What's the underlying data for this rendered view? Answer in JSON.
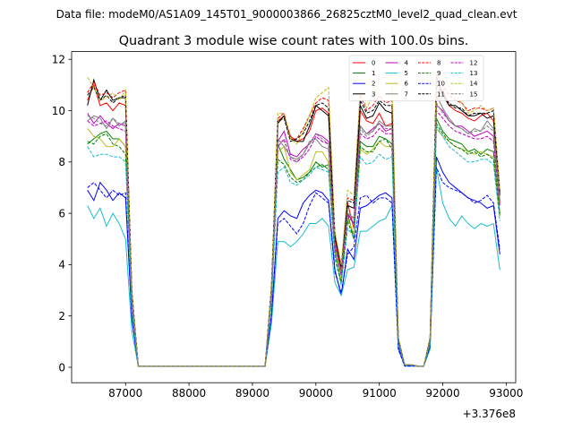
{
  "figure": {
    "suptitle": "Data file: modeM0/AS1A09_145T01_9000003866_26825cztM0_level2_quad_clean.evt"
  },
  "chart_data": {
    "type": "line",
    "title": "Quadrant 3 module wise count rates with 100.0s bins.",
    "xlabel": "",
    "ylabel": "",
    "x_offset_label": "+3.376e8",
    "xlim": [
      86150,
      93150
    ],
    "ylim": [
      -0.6,
      12.3
    ],
    "x_ticks": [
      87000,
      88000,
      89000,
      90000,
      91000,
      92000,
      93000
    ],
    "y_ticks": [
      0,
      2,
      4,
      6,
      8,
      10,
      12
    ],
    "grid": false,
    "legend_position": "top-right",
    "legend_columns": 4,
    "segments": [
      [
        86400,
        86500,
        86600,
        86700,
        86800,
        86900,
        87000,
        87100,
        87200
      ],
      [
        87200,
        89200
      ],
      [
        89200,
        89300,
        89400,
        89500,
        89600,
        89700,
        89800,
        89900,
        90000,
        90100,
        90200,
        90300,
        90400,
        90500,
        90600,
        90700,
        90800,
        90900,
        91000,
        91100,
        91200,
        91300,
        91400
      ],
      [
        91400,
        91500,
        91600,
        91700
      ],
      [
        91700,
        91800,
        91900,
        92000,
        92100,
        92200,
        92300,
        92400,
        92500,
        92600,
        92700,
        92800,
        92900
      ]
    ],
    "series": [
      {
        "name": "0",
        "color": "#ff0000",
        "dash": "solid",
        "values": [
          [
            10.4,
            11.0,
            10.2,
            10.3,
            10.0,
            10.3,
            10.2,
            2.8,
            0.05
          ],
          [
            0.05,
            0.05
          ],
          [
            0.05,
            3.0,
            9.6,
            9.8,
            9.0,
            8.8,
            8.9,
            9.2,
            10.0,
            10.1,
            9.9,
            5.0,
            3.8,
            6.4,
            5.4,
            10.0,
            9.6,
            9.5,
            9.9,
            9.4,
            9.5,
            1.1,
            0.1
          ],
          [
            0.1,
            0.1,
            0.05,
            0.05
          ],
          [
            0.05,
            1.0,
            10.4,
            10.8,
            10.2,
            10.0,
            9.9,
            9.7,
            9.6,
            9.8,
            9.9,
            9.6,
            6.4
          ]
        ]
      },
      {
        "name": "1",
        "color": "#008000",
        "dash": "solid",
        "values": [
          [
            8.7,
            8.9,
            9.1,
            9.2,
            8.9,
            8.9,
            8.6,
            2.4,
            0.05
          ],
          [
            0.05,
            0.05
          ],
          [
            0.05,
            2.8,
            8.7,
            8.1,
            7.7,
            7.3,
            7.4,
            7.6,
            8.0,
            7.8,
            7.9,
            4.5,
            3.3,
            6.0,
            5.0,
            8.8,
            8.6,
            8.6,
            9.0,
            8.9,
            8.7,
            1.0,
            0.1
          ],
          [
            0.1,
            0.1,
            0.05,
            0.05
          ],
          [
            0.05,
            1.0,
            9.7,
            9.2,
            8.9,
            8.8,
            8.7,
            8.4,
            8.5,
            8.3,
            8.5,
            8.4,
            6.0
          ]
        ]
      },
      {
        "name": "2",
        "color": "#0000ff",
        "dash": "solid",
        "values": [
          [
            6.9,
            6.5,
            7.2,
            6.9,
            6.5,
            6.8,
            6.6,
            1.9,
            0.05
          ],
          [
            0.05,
            0.05
          ],
          [
            0.05,
            2.0,
            5.8,
            6.1,
            5.9,
            5.8,
            6.4,
            6.7,
            6.9,
            6.8,
            6.5,
            3.8,
            2.8,
            4.6,
            4.2,
            6.2,
            6.3,
            6.5,
            6.7,
            6.8,
            6.6,
            0.8,
            0.05
          ],
          [
            0.05,
            0.05,
            0.05,
            0.05
          ],
          [
            0.05,
            0.8,
            8.2,
            7.6,
            7.2,
            7.0,
            6.8,
            6.6,
            6.5,
            6.4,
            6.2,
            6.3,
            4.4
          ]
        ]
      },
      {
        "name": "3",
        "color": "#000000",
        "dash": "solid",
        "values": [
          [
            10.2,
            11.2,
            10.4,
            10.8,
            10.4,
            10.5,
            10.5,
            2.9,
            0.05
          ],
          [
            0.05,
            0.05
          ],
          [
            0.05,
            3.1,
            9.5,
            9.8,
            8.9,
            8.8,
            8.8,
            9.4,
            10.2,
            10.0,
            9.8,
            5.1,
            3.9,
            6.3,
            6.2,
            10.2,
            9.7,
            9.8,
            10.3,
            10.0,
            9.9,
            1.1,
            0.1
          ],
          [
            0.1,
            0.1,
            0.05,
            0.05
          ],
          [
            0.05,
            1.1,
            11.3,
            10.6,
            10.2,
            10.2,
            10.0,
            9.8,
            9.8,
            9.9,
            9.7,
            9.8,
            6.7
          ]
        ]
      },
      {
        "name": "4",
        "color": "#bf00bf",
        "dash": "solid",
        "values": [
          [
            9.9,
            9.5,
            9.8,
            9.5,
            9.3,
            9.5,
            9.4,
            2.6,
            0.05
          ],
          [
            0.05,
            0.05
          ],
          [
            0.05,
            2.9,
            8.8,
            9.2,
            8.3,
            8.2,
            8.5,
            8.7,
            9.1,
            9.0,
            8.8,
            4.8,
            3.6,
            6.0,
            5.6,
            9.4,
            9.1,
            9.3,
            9.5,
            9.2,
            9.3,
            1.0,
            0.1
          ],
          [
            0.1,
            0.1,
            0.05,
            0.05
          ],
          [
            0.05,
            1.0,
            10.2,
            10.0,
            9.6,
            9.4,
            9.4,
            9.2,
            9.0,
            9.1,
            9.2,
            9.0,
            6.5
          ]
        ]
      },
      {
        "name": "5",
        "color": "#17becf",
        "dash": "solid",
        "values": [
          [
            6.3,
            5.8,
            6.2,
            5.5,
            6.0,
            5.6,
            5.0,
            1.4,
            0.05
          ],
          [
            0.05,
            0.05
          ],
          [
            0.05,
            1.7,
            4.9,
            4.9,
            4.7,
            4.9,
            5.2,
            5.6,
            5.6,
            5.8,
            5.5,
            3.3,
            2.8,
            3.8,
            3.9,
            5.3,
            5.3,
            5.5,
            5.7,
            5.8,
            6.3,
            0.7,
            0.05
          ],
          [
            0.05,
            0.05,
            0.05,
            0.05
          ],
          [
            0.05,
            0.7,
            7.8,
            6.4,
            5.8,
            5.5,
            5.9,
            5.6,
            5.4,
            5.6,
            5.5,
            5.6,
            3.8
          ]
        ]
      },
      {
        "name": "6",
        "color": "#bcbd22",
        "dash": "solid",
        "values": [
          [
            9.3,
            9.0,
            8.9,
            8.6,
            8.6,
            8.9,
            8.6,
            2.4,
            0.05
          ],
          [
            0.05,
            0.05
          ],
          [
            0.05,
            2.7,
            8.4,
            8.6,
            7.6,
            7.3,
            7.5,
            7.7,
            8.4,
            8.4,
            8.0,
            4.5,
            3.4,
            5.8,
            5.2,
            8.5,
            8.3,
            8.5,
            8.8,
            8.6,
            8.6,
            1.0,
            0.1
          ],
          [
            0.1,
            0.1,
            0.05,
            0.05
          ],
          [
            0.05,
            1.0,
            9.3,
            9.0,
            8.8,
            8.6,
            8.5,
            8.4,
            8.3,
            8.4,
            8.3,
            8.2,
            5.9
          ]
        ]
      },
      {
        "name": "7",
        "color": "#7f7f7f",
        "dash": "solid",
        "values": [
          [
            9.6,
            9.8,
            9.7,
            9.3,
            9.7,
            9.4,
            9.6,
            2.7,
            0.05
          ],
          [
            0.05,
            0.05
          ],
          [
            0.05,
            2.9,
            8.9,
            8.6,
            8.2,
            8.1,
            8.3,
            8.8,
            8.9,
            8.6,
            8.5,
            4.7,
            3.6,
            6.0,
            5.8,
            9.4,
            9.1,
            9.2,
            9.6,
            9.4,
            9.4,
            1.0,
            0.1
          ],
          [
            0.1,
            0.1,
            0.05,
            0.05
          ],
          [
            0.05,
            1.0,
            10.6,
            10.1,
            9.7,
            9.4,
            9.3,
            9.1,
            9.3,
            9.2,
            9.6,
            9.3,
            6.5
          ]
        ]
      },
      {
        "name": "8",
        "color": "#ff0000",
        "dash": "dashed",
        "values": [
          [
            10.7,
            11.1,
            10.6,
            10.7,
            10.5,
            10.7,
            10.8,
            3.0,
            0.05
          ],
          [
            0.05,
            0.05
          ],
          [
            0.05,
            3.2,
            9.7,
            9.9,
            8.9,
            8.9,
            9.3,
            9.8,
            10.3,
            10.5,
            10.4,
            5.2,
            3.9,
            6.6,
            6.5,
            10.6,
            10.0,
            10.2,
            10.6,
            10.3,
            10.4,
            1.1,
            0.1
          ],
          [
            0.1,
            0.1,
            0.05,
            0.05
          ],
          [
            0.05,
            1.1,
            11.4,
            11.0,
            10.6,
            10.4,
            10.3,
            10.0,
            10.1,
            10.1,
            10.0,
            10.1,
            6.9
          ]
        ]
      },
      {
        "name": "9",
        "color": "#008000",
        "dash": "dashed",
        "values": [
          [
            8.8,
            8.7,
            9.0,
            9.1,
            8.7,
            8.6,
            8.3,
            2.3,
            0.05
          ],
          [
            0.05,
            0.05
          ],
          [
            0.05,
            2.6,
            8.1,
            7.9,
            7.4,
            7.2,
            7.3,
            7.6,
            7.8,
            7.9,
            7.7,
            4.4,
            3.3,
            5.7,
            5.0,
            8.6,
            8.4,
            8.4,
            8.8,
            8.9,
            8.5,
            1.0,
            0.1
          ],
          [
            0.1,
            0.1,
            0.05,
            0.05
          ],
          [
            0.05,
            0.9,
            9.5,
            9.1,
            8.8,
            8.6,
            8.5,
            8.3,
            8.4,
            8.2,
            8.3,
            8.1,
            5.9
          ]
        ]
      },
      {
        "name": "10",
        "color": "#0000ff",
        "dash": "dashed",
        "values": [
          [
            7.0,
            7.2,
            6.9,
            6.6,
            6.9,
            6.7,
            6.8,
            1.9,
            0.05
          ],
          [
            0.05,
            0.05
          ],
          [
            0.05,
            2.0,
            5.6,
            5.8,
            5.5,
            5.2,
            5.6,
            6.3,
            6.8,
            6.6,
            6.4,
            3.7,
            2.9,
            4.4,
            4.7,
            6.6,
            6.7,
            6.4,
            6.6,
            6.6,
            6.4,
            0.7,
            0.05
          ],
          [
            0.05,
            0.05,
            0.05,
            0.05
          ],
          [
            0.05,
            0.8,
            7.8,
            7.2,
            7.0,
            6.9,
            6.8,
            6.6,
            6.4,
            6.5,
            6.7,
            6.4,
            4.6
          ]
        ]
      },
      {
        "name": "11",
        "color": "#000000",
        "dash": "dashed",
        "values": [
          [
            10.6,
            10.9,
            10.4,
            10.6,
            10.3,
            10.5,
            10.6,
            2.9,
            0.05
          ],
          [
            0.05,
            0.05
          ],
          [
            0.05,
            3.1,
            9.6,
            9.7,
            8.8,
            8.9,
            9.1,
            9.6,
            10.2,
            10.3,
            10.1,
            5.1,
            3.9,
            6.5,
            6.4,
            10.4,
            9.9,
            10.0,
            10.4,
            10.2,
            10.2,
            1.1,
            0.1
          ],
          [
            0.1,
            0.1,
            0.05,
            0.05
          ],
          [
            0.05,
            1.1,
            11.0,
            10.6,
            10.3,
            10.1,
            10.1,
            9.8,
            9.9,
            9.9,
            9.9,
            10.0,
            6.8
          ]
        ]
      },
      {
        "name": "12",
        "color": "#bf00bf",
        "dash": "dashed",
        "values": [
          [
            9.6,
            9.4,
            9.5,
            9.6,
            9.4,
            9.3,
            9.2,
            2.6,
            0.05
          ],
          [
            0.05,
            0.05
          ],
          [
            0.05,
            2.8,
            8.6,
            8.9,
            8.1,
            8.0,
            8.2,
            8.5,
            9.0,
            8.8,
            8.7,
            4.7,
            3.6,
            5.9,
            5.6,
            9.1,
            8.9,
            9.0,
            9.3,
            9.1,
            9.1,
            1.0,
            0.1
          ],
          [
            0.1,
            0.1,
            0.05,
            0.05
          ],
          [
            0.05,
            1.0,
            10.0,
            9.7,
            9.4,
            9.2,
            9.1,
            9.0,
            8.9,
            8.9,
            9.0,
            8.8,
            6.3
          ]
        ]
      },
      {
        "name": "13",
        "color": "#17becf",
        "dash": "dashed",
        "values": [
          [
            8.6,
            8.2,
            8.3,
            8.3,
            8.2,
            8.2,
            8.0,
            2.2,
            0.05
          ],
          [
            0.05,
            0.05
          ],
          [
            0.05,
            2.5,
            7.6,
            7.8,
            7.2,
            7.1,
            7.3,
            7.5,
            7.8,
            7.7,
            7.6,
            4.2,
            3.2,
            5.4,
            5.1,
            8.2,
            7.9,
            8.0,
            8.3,
            8.1,
            8.2,
            0.9,
            0.1
          ],
          [
            0.1,
            0.1,
            0.05,
            0.05
          ],
          [
            0.05,
            0.9,
            9.4,
            9.0,
            8.6,
            8.4,
            8.2,
            8.0,
            8.0,
            8.1,
            8.1,
            7.9,
            5.7
          ]
        ]
      },
      {
        "name": "14",
        "color": "#bcbd22",
        "dash": "dashed",
        "values": [
          [
            11.3,
            10.9,
            10.4,
            10.5,
            10.7,
            10.4,
            10.8,
            3.0,
            0.05
          ],
          [
            0.05,
            0.05
          ],
          [
            0.05,
            3.2,
            9.9,
            9.9,
            8.9,
            8.7,
            9.2,
            9.8,
            10.5,
            10.7,
            10.9,
            5.3,
            4.0,
            6.9,
            6.7,
            10.8,
            10.1,
            10.6,
            11.2,
            11.3,
            11.4,
            1.2,
            0.1
          ],
          [
            0.1,
            0.1,
            0.05,
            0.05
          ],
          [
            0.05,
            1.2,
            11.5,
            11.6,
            10.9,
            10.6,
            10.3,
            9.9,
            10.0,
            10.2,
            10.0,
            10.1,
            6.9
          ]
        ]
      },
      {
        "name": "15",
        "color": "#7f7f7f",
        "dash": "dashed",
        "values": [
          [
            9.8,
            9.7,
            9.5,
            9.4,
            9.7,
            9.5,
            9.5,
            2.7,
            0.05
          ],
          [
            0.05,
            0.05
          ],
          [
            0.05,
            2.9,
            8.8,
            8.8,
            8.2,
            8.0,
            8.3,
            8.7,
            9.1,
            8.9,
            8.7,
            4.8,
            3.7,
            6.1,
            5.8,
            9.3,
            9.0,
            9.2,
            9.5,
            9.3,
            9.3,
            1.0,
            0.1
          ],
          [
            0.1,
            0.1,
            0.05,
            0.05
          ],
          [
            0.05,
            1.0,
            10.3,
            9.9,
            9.6,
            9.4,
            9.3,
            9.1,
            9.2,
            9.2,
            9.4,
            9.2,
            6.4
          ]
        ]
      }
    ]
  }
}
